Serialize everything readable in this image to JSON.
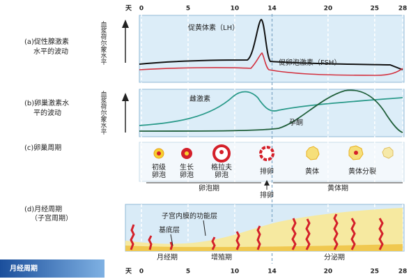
{
  "axis": {
    "unit": "天",
    "days": [
      0,
      5,
      10,
      14,
      20,
      25,
      28
    ]
  },
  "panels": [
    {
      "label": [
        "(a)促性腺激素",
        "水平的波动"
      ],
      "y_label": "血浆荷尔蒙水平",
      "curves": [
        "促黄体素（LH）",
        "促卵泡激素（FSH）"
      ]
    },
    {
      "label": [
        "(b)卵巢激素水",
        "平的波动"
      ],
      "y_label": "血浆荷尔蒙水平",
      "curves": [
        "雌激素",
        "孕酮"
      ]
    },
    {
      "label": [
        "(c)卵巢周期"
      ],
      "stages": [
        [
          "初级",
          "卵泡"
        ],
        [
          "生长",
          "卵泡"
        ],
        [
          "格拉夫",
          "卵泡"
        ],
        [
          "排卵"
        ],
        [
          "黄体"
        ],
        [
          "黄体分裂"
        ]
      ],
      "phases": [
        "卵泡期",
        "黄体期"
      ],
      "event": "排卵"
    },
    {
      "label": [
        "(d)月经周期",
        "（子宫周期）"
      ],
      "layers": [
        "子宫内膜的功能层",
        "基底层"
      ],
      "phases": [
        "月经期",
        "增殖期",
        "分泌期"
      ]
    }
  ],
  "banner": "月经周期"
}
